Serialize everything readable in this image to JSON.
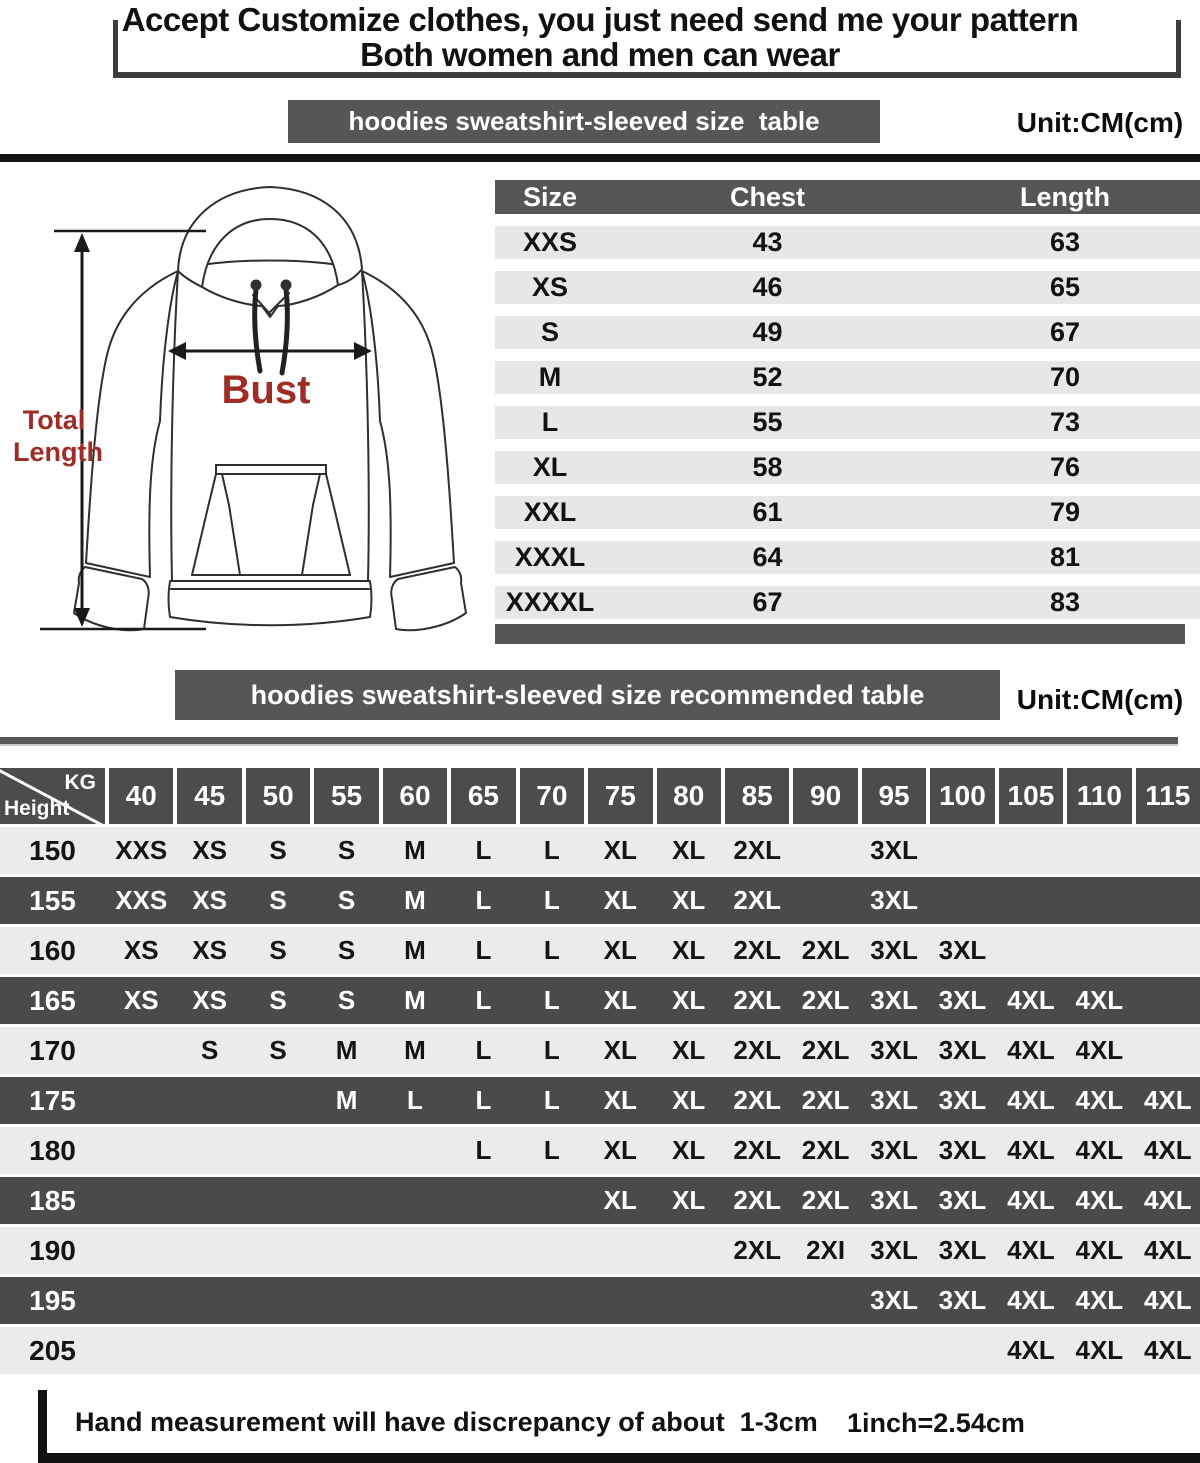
{
  "colors": {
    "banner-dark": "#565658",
    "header-cell-dark": "#4c4c4e",
    "row-dark": "#4a4a4c",
    "row-light": "#ebebeb",
    "table-row-light": "#e7e7e7",
    "accent-red": "#9f2d26",
    "rule-black": "#141414"
  },
  "heading": {
    "line1": "Accept Customize clothes, you just need send me your pattern",
    "line2": "Both women and men can wear"
  },
  "size_section": {
    "banner": "hoodies sweatshirt-sleeved size  table",
    "unit": "Unit:CM(cm)",
    "diagram": {
      "total_length_label_1": "Total",
      "total_length_label_2": "Length",
      "bust_label": "Bust"
    },
    "table": {
      "columns": [
        "Size",
        "Chest",
        "Length"
      ],
      "rows": [
        [
          "XXS",
          "43",
          "63"
        ],
        [
          "XS",
          "46",
          "65"
        ],
        [
          "S",
          "49",
          "67"
        ],
        [
          "M",
          "52",
          "70"
        ],
        [
          "L",
          "55",
          "73"
        ],
        [
          "XL",
          "58",
          "76"
        ],
        [
          "XXL",
          "61",
          "79"
        ],
        [
          "XXXL",
          "64",
          "81"
        ],
        [
          "XXXXL",
          "67",
          "83"
        ]
      ]
    }
  },
  "recommended_section": {
    "banner": "hoodies sweatshirt-sleeved size recommended table",
    "unit": "Unit:CM(cm)",
    "matrix": {
      "corner_top": "KG",
      "corner_bottom": "Height",
      "weight_columns": [
        "40",
        "45",
        "50",
        "55",
        "60",
        "65",
        "70",
        "75",
        "80",
        "85",
        "90",
        "95",
        "100",
        "105",
        "110",
        "115"
      ],
      "rows": [
        {
          "height": "150",
          "values": [
            "XXS",
            "XS",
            "S",
            "S",
            "M",
            "L",
            "L",
            "XL",
            "XL",
            "2XL",
            "",
            "3XL",
            "",
            "",
            "",
            ""
          ]
        },
        {
          "height": "155",
          "values": [
            "XXS",
            "XS",
            "S",
            "S",
            "M",
            "L",
            "L",
            "XL",
            "XL",
            "2XL",
            "",
            "3XL",
            "",
            "",
            "",
            ""
          ]
        },
        {
          "height": "160",
          "values": [
            "XS",
            "XS",
            "S",
            "S",
            "M",
            "L",
            "L",
            "XL",
            "XL",
            "2XL",
            "2XL",
            "3XL",
            "3XL",
            "",
            "",
            ""
          ]
        },
        {
          "height": "165",
          "values": [
            "XS",
            "XS",
            "S",
            "S",
            "M",
            "L",
            "L",
            "XL",
            "XL",
            "2XL",
            "2XL",
            "3XL",
            "3XL",
            "4XL",
            "4XL",
            ""
          ]
        },
        {
          "height": "170",
          "values": [
            "",
            "S",
            "S",
            "M",
            "M",
            "L",
            "L",
            "XL",
            "XL",
            "2XL",
            "2XL",
            "3XL",
            "3XL",
            "4XL",
            "4XL",
            ""
          ]
        },
        {
          "height": "175",
          "values": [
            "",
            "",
            "",
            "M",
            "L",
            "L",
            "L",
            "XL",
            "XL",
            "2XL",
            "2XL",
            "3XL",
            "3XL",
            "4XL",
            "4XL",
            "4XL"
          ]
        },
        {
          "height": "180",
          "values": [
            "",
            "",
            "",
            "",
            "",
            "L",
            "L",
            "XL",
            "XL",
            "2XL",
            "2XL",
            "3XL",
            "3XL",
            "4XL",
            "4XL",
            "4XL"
          ]
        },
        {
          "height": "185",
          "values": [
            "",
            "",
            "",
            "",
            "",
            "",
            "",
            "XL",
            "XL",
            "2XL",
            "2XL",
            "3XL",
            "3XL",
            "4XL",
            "4XL",
            "4XL"
          ]
        },
        {
          "height": "190",
          "values": [
            "",
            "",
            "",
            "",
            "",
            "",
            "",
            "",
            "",
            "2XL",
            "2XI",
            "3XL",
            "3XL",
            "4XL",
            "4XL",
            "4XL"
          ]
        },
        {
          "height": "195",
          "values": [
            "",
            "",
            "",
            "",
            "",
            "",
            "",
            "",
            "",
            "",
            "",
            "3XL",
            "3XL",
            "4XL",
            "4XL",
            "4XL"
          ]
        },
        {
          "height": "205",
          "values": [
            "",
            "",
            "",
            "",
            "",
            "",
            "",
            "",
            "",
            "",
            "",
            "",
            "",
            "4XL",
            "4XL",
            "4XL"
          ]
        }
      ]
    }
  },
  "footer": {
    "note": "Hand measurement will have discrepancy of about  1-3cm",
    "conversion": "1inch=2.54cm"
  }
}
